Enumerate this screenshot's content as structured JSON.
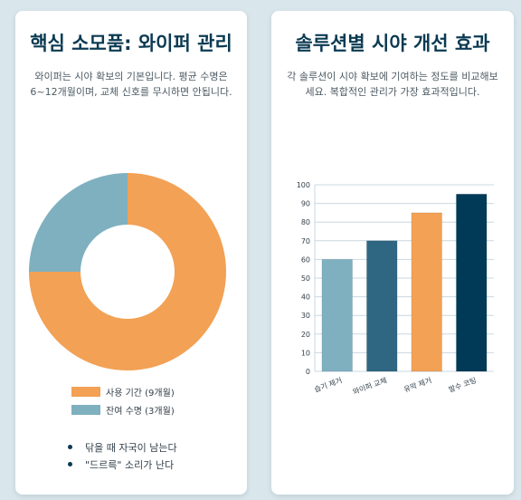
{
  "left_card": {
    "title": "핵심 소모품: 와이퍼 관리",
    "description": "와이퍼는 시야 확보의 기본입니다. 평균 수명은 6~12개월이며, 교체 신호를 무시하면 안됩니다.",
    "bullets": [
      "닦을 때 자국이 남는다",
      "\"드르륵\" 소리가 난다"
    ]
  },
  "right_card": {
    "title": "솔루션별 시야 개선 효과",
    "description": "각 솔루션이 시야 확보에 기여하는 정도를 비교해보세요. 복합적인 관리가 가장 효과적입니다."
  },
  "colors": {
    "orange": "#f2a155",
    "light_teal": "#7fb0c0",
    "mid_teal": "#2f6782",
    "dark_navy": "#003a57"
  },
  "chart_data": [
    {
      "type": "pie",
      "variant": "donut",
      "labels": [
        "사용 기간 (9개월)",
        "잔여 수명 (3개월)"
      ],
      "values": [
        9,
        3
      ],
      "colors": [
        "#f2a155",
        "#7fb0c0"
      ],
      "legend": "bottom"
    },
    {
      "type": "bar",
      "categories": [
        "습기 제거",
        "와이퍼 교체",
        "유막 제거",
        "발수 코팅"
      ],
      "values": [
        60,
        70,
        85,
        95
      ],
      "colors": [
        "#7fb0c0",
        "#2f6782",
        "#f2a155",
        "#003a57"
      ],
      "ylim": [
        0,
        100
      ],
      "yticks": [
        0,
        10,
        20,
        30,
        40,
        50,
        60,
        70,
        80,
        90,
        100
      ],
      "grid": true
    }
  ]
}
